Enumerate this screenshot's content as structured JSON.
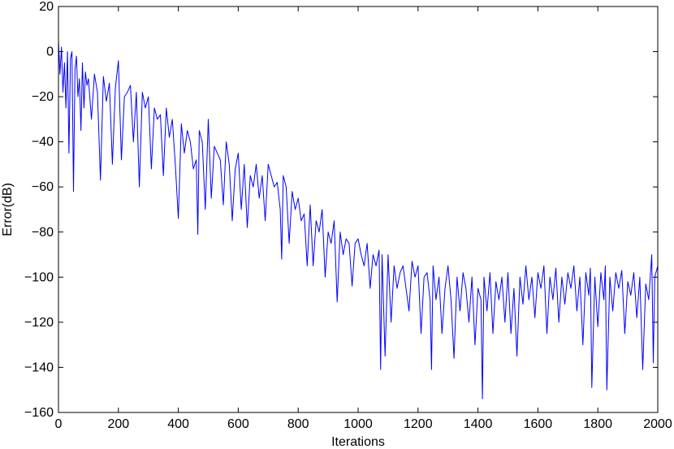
{
  "chart_data": {
    "type": "line",
    "title": "",
    "xlabel": "Iterations",
    "ylabel": "Error(dB)",
    "xlim": [
      0,
      2000
    ],
    "ylim": [
      -160,
      20
    ],
    "xticks": [
      0,
      200,
      400,
      600,
      800,
      1000,
      1200,
      1400,
      1600,
      1800,
      2000
    ],
    "yticks": [
      20,
      0,
      -20,
      -40,
      -60,
      -80,
      -100,
      -120,
      -140,
      -160
    ],
    "xtick_labels": [
      "0",
      "200",
      "400",
      "600",
      "800",
      "1000",
      "1200",
      "1400",
      "1600",
      "1800",
      "2000"
    ],
    "ytick_labels": [
      "20",
      "0",
      "−20",
      "−40",
      "−60",
      "−80",
      "−100",
      "−120",
      "−140",
      "−160"
    ],
    "grid": false,
    "legend": "none",
    "series": [
      {
        "color": "#0000ff",
        "x": [
          0,
          5,
          10,
          15,
          20,
          25,
          30,
          35,
          40,
          45,
          50,
          55,
          60,
          65,
          70,
          75,
          80,
          85,
          90,
          95,
          100,
          110,
          120,
          130,
          140,
          150,
          160,
          170,
          180,
          190,
          200,
          210,
          220,
          230,
          240,
          250,
          260,
          270,
          280,
          290,
          300,
          310,
          320,
          330,
          340,
          350,
          360,
          370,
          380,
          390,
          400,
          410,
          420,
          430,
          440,
          450,
          460,
          465,
          470,
          480,
          490,
          500,
          510,
          520,
          530,
          540,
          550,
          560,
          570,
          580,
          590,
          600,
          610,
          620,
          630,
          640,
          650,
          660,
          670,
          680,
          690,
          700,
          710,
          720,
          730,
          740,
          745,
          750,
          760,
          770,
          780,
          790,
          800,
          810,
          820,
          830,
          840,
          850,
          860,
          870,
          880,
          890,
          900,
          910,
          920,
          930,
          940,
          950,
          960,
          970,
          980,
          990,
          1000,
          1010,
          1020,
          1030,
          1040,
          1050,
          1060,
          1070,
          1075,
          1080,
          1090,
          1100,
          1110,
          1120,
          1130,
          1140,
          1150,
          1160,
          1170,
          1180,
          1190,
          1200,
          1210,
          1220,
          1230,
          1240,
          1245,
          1250,
          1260,
          1270,
          1280,
          1290,
          1300,
          1310,
          1320,
          1330,
          1340,
          1350,
          1360,
          1370,
          1380,
          1390,
          1400,
          1410,
          1415,
          1420,
          1430,
          1440,
          1450,
          1460,
          1470,
          1480,
          1490,
          1500,
          1510,
          1520,
          1530,
          1540,
          1550,
          1560,
          1570,
          1580,
          1590,
          1600,
          1610,
          1620,
          1630,
          1640,
          1650,
          1660,
          1670,
          1680,
          1690,
          1700,
          1710,
          1720,
          1730,
          1740,
          1750,
          1760,
          1770,
          1775,
          1780,
          1790,
          1800,
          1810,
          1820,
          1825,
          1830,
          1840,
          1850,
          1860,
          1870,
          1880,
          1890,
          1900,
          1910,
          1920,
          1930,
          1940,
          1950,
          1960,
          1970,
          1980,
          1985,
          1990,
          2000
        ],
        "y": [
          5,
          -10,
          2,
          -18,
          -5,
          -25,
          0,
          -45,
          -3,
          0,
          -62,
          -8,
          -2,
          -20,
          -12,
          -35,
          -5,
          -25,
          -9,
          -15,
          -12,
          -30,
          -10,
          -18,
          -57,
          -11,
          -22,
          -14,
          -50,
          -16,
          -4,
          -48,
          -20,
          -18,
          -15,
          -40,
          -18,
          -60,
          -18,
          -25,
          -20,
          -52,
          -25,
          -30,
          -28,
          -55,
          -25,
          -38,
          -30,
          -50,
          -74,
          -32,
          -45,
          -35,
          -40,
          -52,
          -48,
          -81,
          -35,
          -40,
          -70,
          -30,
          -65,
          -42,
          -45,
          -48,
          -68,
          -40,
          -50,
          -75,
          -52,
          -45,
          -70,
          -50,
          -78,
          -55,
          -60,
          -50,
          -65,
          -55,
          -75,
          -50,
          -55,
          -60,
          -58,
          -70,
          -92,
          -55,
          -60,
          -85,
          -62,
          -70,
          -65,
          -75,
          -72,
          -95,
          -68,
          -95,
          -75,
          -80,
          -70,
          -100,
          -80,
          -85,
          -75,
          -111,
          -80,
          -90,
          -83,
          -85,
          -104,
          -85,
          -83,
          -90,
          -95,
          -85,
          -105,
          -90,
          -95,
          -88,
          -141,
          -90,
          -135,
          -90,
          -120,
          -95,
          -105,
          -98,
          -95,
          -105,
          -115,
          -93,
          -100,
          -95,
          -125,
          -100,
          -98,
          -110,
          -141,
          -95,
          -110,
          -100,
          -125,
          -105,
          -95,
          -110,
          -136,
          -100,
          -115,
          -98,
          -105,
          -120,
          -100,
          -130,
          -105,
          -110,
          -154,
          -100,
          -115,
          -98,
          -125,
          -102,
          -110,
          -100,
          -120,
          -98,
          -125,
          -105,
          -135,
          -100,
          -112,
          -95,
          -110,
          -100,
          -118,
          -98,
          -105,
          -95,
          -125,
          -100,
          -110,
          -96,
          -120,
          -100,
          -112,
          -98,
          -105,
          -95,
          -115,
          -100,
          -130,
          -98,
          -108,
          -96,
          -149,
          -100,
          -122,
          -98,
          -110,
          -95,
          -150,
          -100,
          -115,
          -98,
          -105,
          -97,
          -125,
          -102,
          -108,
          -98,
          -118,
          -100,
          -141,
          -103,
          -110,
          -90,
          -138,
          -100,
          -95
        ]
      }
    ]
  }
}
